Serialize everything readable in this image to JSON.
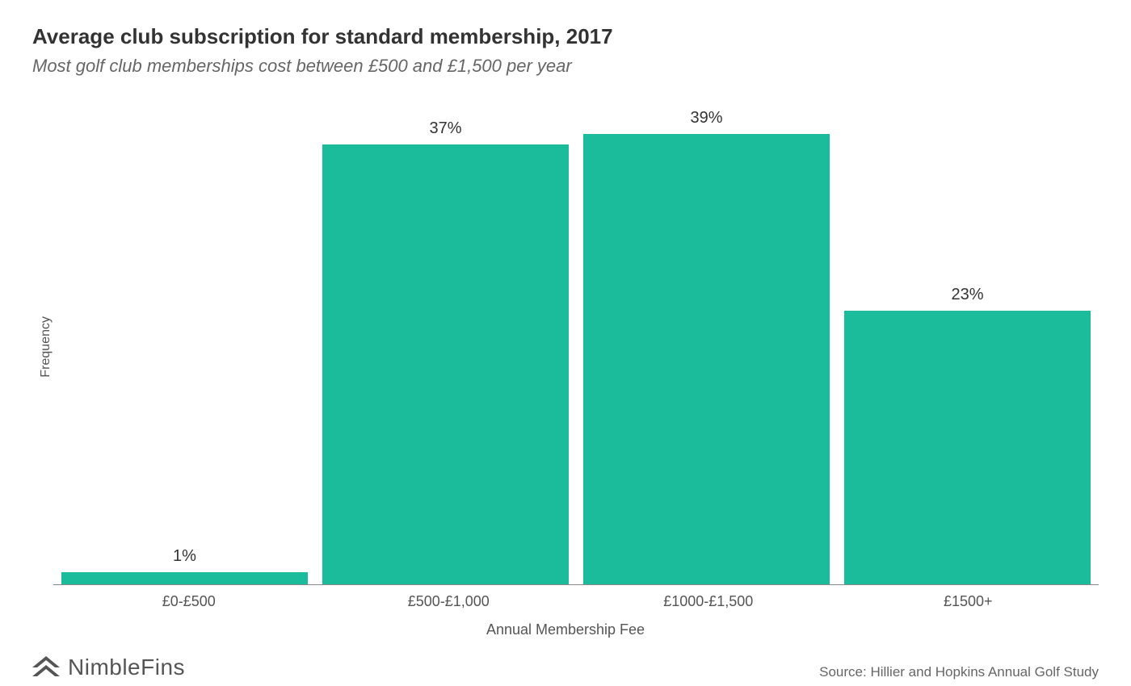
{
  "title": "Average club subscription for standard membership, 2017",
  "subtitle": "Most golf club memberships cost between £500 and £1,500 per year",
  "chart": {
    "type": "bar",
    "y_label": "Frequency",
    "x_label": "Annual Membership Fee",
    "y_max": 40,
    "bar_color": "#1abc9c",
    "background_color": "#ffffff",
    "axis_color": "#888888",
    "title_fontsize": 26,
    "subtitle_fontsize": 22,
    "label_fontsize": 18,
    "value_fontsize": 20,
    "bars": [
      {
        "category": "£0-£500",
        "value": 1,
        "display": "1%"
      },
      {
        "category": "£500-£1,000",
        "value": 37,
        "display": "37%"
      },
      {
        "category": "£1000-£1,500",
        "value": 39,
        "display": "39%"
      },
      {
        "category": "£1500+",
        "value": 23,
        "display": "23%"
      }
    ]
  },
  "source": "Source: Hillier and Hopkins Annual Golf Study",
  "brand": "NimbleFins",
  "brand_color": "#555555"
}
